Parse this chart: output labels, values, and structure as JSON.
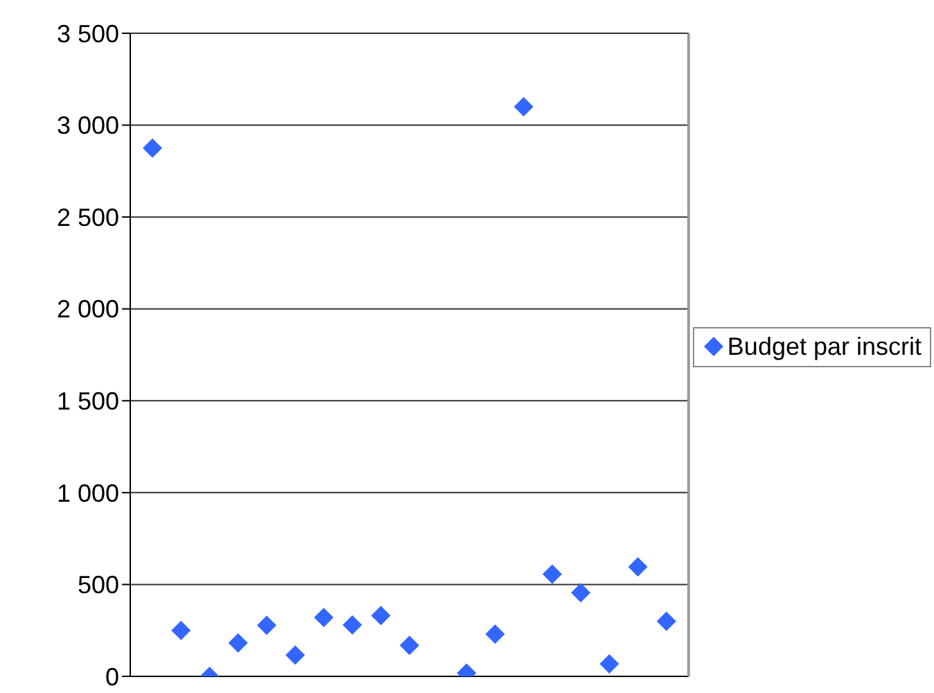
{
  "chart_data": {
    "type": "scatter",
    "categories": [
      null,
      null,
      null,
      null,
      null,
      null,
      null,
      null,
      null,
      null,
      null,
      null,
      null,
      null,
      null,
      null,
      null,
      null,
      null
    ],
    "series": [
      {
        "name": "Budget par inscrit",
        "color": "#3366ff",
        "values": [
          2875,
          250,
          0,
          182,
          278,
          116,
          321,
          280,
          331,
          169,
          null,
          18,
          230,
          3100,
          556,
          455,
          68,
          596,
          300
        ]
      }
    ],
    "ylim": [
      0,
      3500
    ],
    "yticks": [
      0,
      500,
      {
        "value": 1000,
        "label": "1 000"
      },
      {
        "value": 1500,
        "label": "1 500"
      },
      {
        "value": 2000,
        "label": "2 000"
      },
      {
        "value": 2500,
        "label": "2 500"
      },
      {
        "value": 3000,
        "label": "3 000"
      },
      {
        "value": 3500,
        "label": "3 500"
      }
    ],
    "grid": "y",
    "legend": "right",
    "marker": "diamond",
    "tick_labels": "y"
  }
}
